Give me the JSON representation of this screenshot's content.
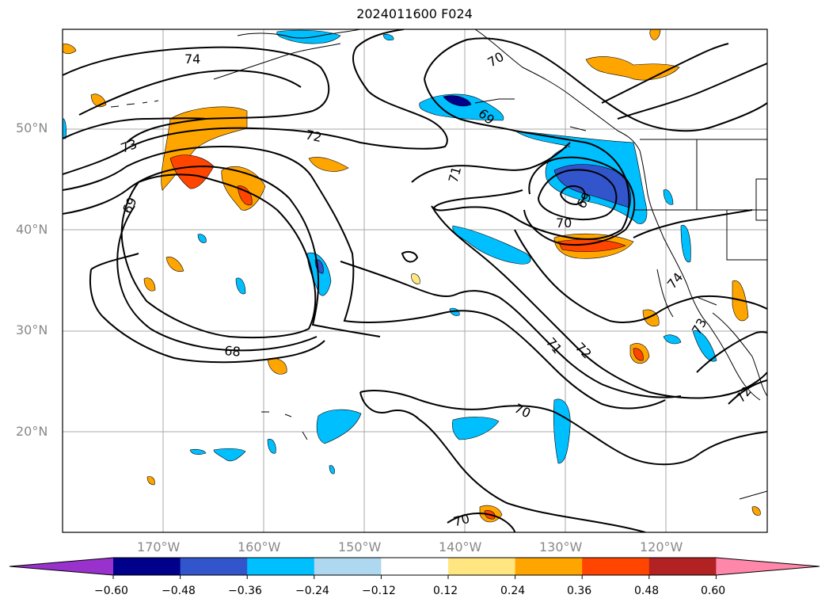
{
  "title": "2024011600 F024",
  "lat_labels": [
    "50°N",
    "40°N",
    "30°N",
    "20°N"
  ],
  "lon_labels": [
    "170°W",
    "160°W",
    "150°W",
    "140°W",
    "130°W",
    "120°W"
  ],
  "contour_labels": [
    "74",
    "73",
    "72",
    "69",
    "68",
    "70",
    "69",
    "71",
    "69",
    "70",
    "74",
    "71",
    "72",
    "70",
    "70",
    "73",
    "72"
  ],
  "colorbar": {
    "ticks": [
      "−0.60",
      "−0.48",
      "−0.36",
      "−0.24",
      "−0.12",
      "0.12",
      "0.24",
      "0.36",
      "0.48",
      "0.60"
    ],
    "colors": [
      "#9932cc",
      "#00008b",
      "#3355cc",
      "#00bfff",
      "#add8f0",
      "#ffffff",
      "#ffe680",
      "#ffa500",
      "#ff4500",
      "#b22222",
      "#ff88aa"
    ]
  }
}
